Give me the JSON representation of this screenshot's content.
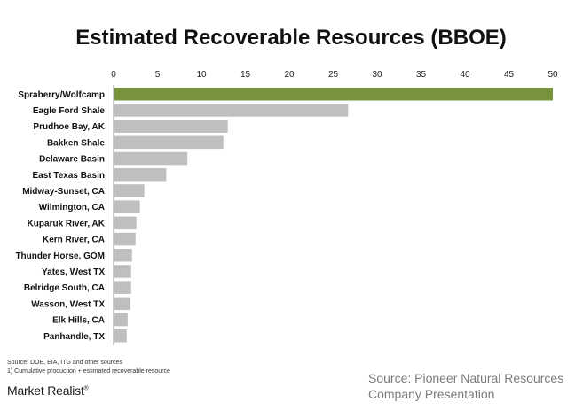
{
  "chart_data": {
    "type": "bar",
    "orientation": "horizontal",
    "title": "Estimated Recoverable Resources (BBOE)",
    "categories": [
      "Spraberry/Wolfcamp",
      "Eagle Ford Shale",
      "Prudhoe Bay, AK",
      "Bakken Shale",
      "Delaware Basin",
      "East Texas Basin",
      "Midway-Sunset, CA",
      "Wilmington, CA",
      "Kuparuk River, AK",
      "Kern River, CA",
      "Thunder Horse, GOM",
      "Yates, West TX",
      "Belridge South, CA",
      "Wasson, West TX",
      "Elk Hills, CA",
      "Panhandle, TX"
    ],
    "values": [
      50,
      26.7,
      13,
      12.5,
      8.4,
      6,
      3.5,
      3,
      2.6,
      2.5,
      2.1,
      2,
      2,
      1.9,
      1.6,
      1.5
    ],
    "xlim": [
      0,
      50
    ],
    "xticks": [
      0,
      5,
      10,
      15,
      20,
      25,
      30,
      35,
      40,
      45,
      50
    ],
    "highlight_color": "#77933c",
    "bar_color": "#bfbfbf",
    "grid": false,
    "legend": "none",
    "axis_position": "top"
  },
  "footnotes": {
    "source_line": "Source: DOE, EIA, ITG and other sources",
    "note_line": "1)    Cumulative production + estimated recoverable resource"
  },
  "source_credit": {
    "line1": "Source: Pioneer Natural Resources",
    "line2": "Company Presentation"
  },
  "brand": {
    "name": "Market Realist",
    "mark": "®"
  }
}
